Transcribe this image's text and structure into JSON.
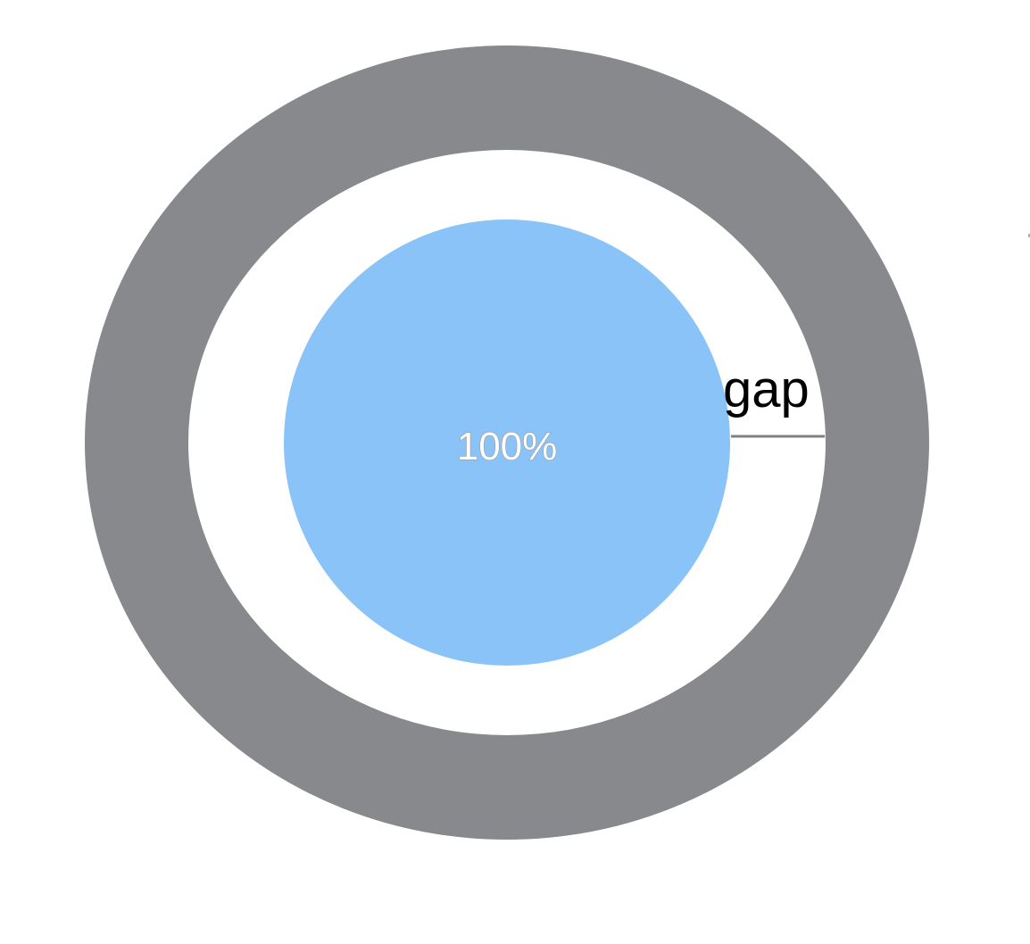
{
  "diagram": {
    "center_label": "100%",
    "gap_label": "gap"
  },
  "colors": {
    "outer_ring": "#87898c",
    "gap_area": "#ffffff",
    "inner_circle": "#8ac3f7",
    "gap_line": "#808080",
    "background": "#ffffff"
  }
}
